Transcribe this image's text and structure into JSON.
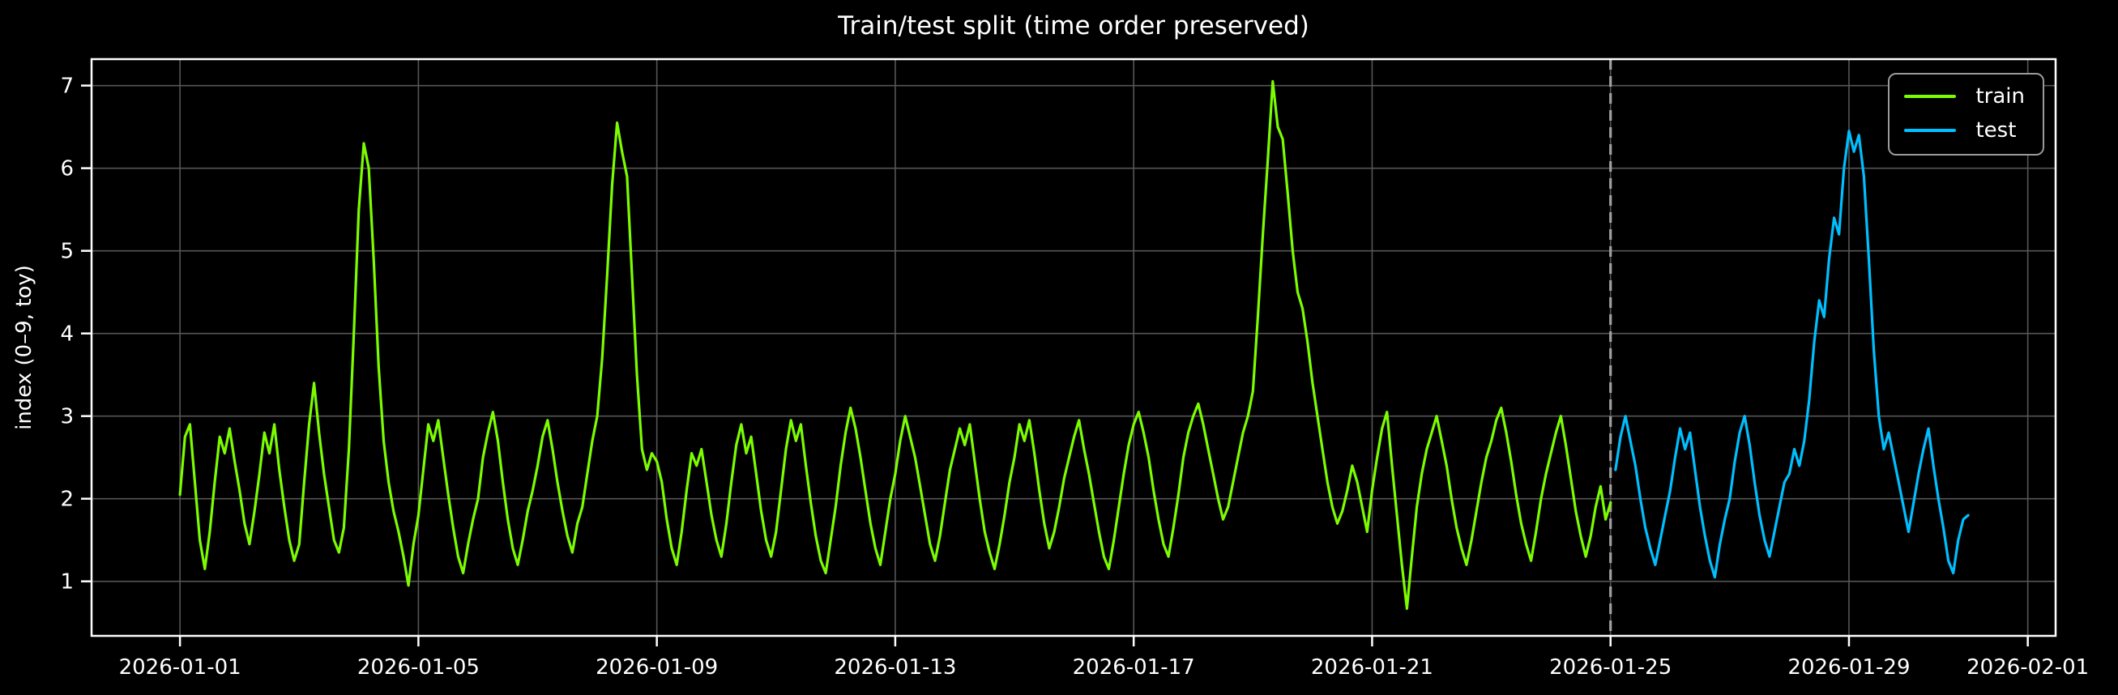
{
  "chart_data": {
    "type": "line",
    "title": "Train/test split (time order preserved)",
    "xlabel": "",
    "ylabel": "index (0–9, toy)",
    "background_color": "#000000",
    "grid": true,
    "grid_color": "#565656",
    "spine_color": "#ffffff",
    "text_color": "#ffffff",
    "x_axis": {
      "tick_labels": [
        "2026-01-01",
        "2026-01-05",
        "2026-01-09",
        "2026-01-13",
        "2026-01-17",
        "2026-01-21",
        "2026-01-25",
        "2026-01-29",
        "2026-02-01"
      ],
      "tick_hours": [
        0,
        96,
        192,
        288,
        384,
        480,
        576,
        672,
        744
      ],
      "xlim_hours": [
        -35.6,
        755.2
      ],
      "start_date": "2026-01-01"
    },
    "y_axis": {
      "ticks": [
        1,
        2,
        3,
        4,
        5,
        6,
        7
      ],
      "ylim": [
        0.34,
        7.32
      ]
    },
    "split_line": {
      "hour": 576,
      "date": "2026-01-25",
      "color": "#a0a0a0",
      "style": "dashed"
    },
    "step_hours": 2,
    "series": [
      {
        "name": "train",
        "color": "#7cfc00",
        "start_hour": 0,
        "values": [
          2.05,
          2.75,
          2.9,
          2.2,
          1.5,
          1.15,
          1.6,
          2.2,
          2.75,
          2.55,
          2.85,
          2.45,
          2.1,
          1.7,
          1.45,
          1.85,
          2.3,
          2.8,
          2.55,
          2.9,
          2.35,
          1.9,
          1.5,
          1.25,
          1.45,
          2.2,
          2.9,
          3.4,
          2.8,
          2.3,
          1.9,
          1.5,
          1.35,
          1.65,
          2.6,
          4.0,
          5.5,
          6.3,
          6.0,
          4.9,
          3.6,
          2.7,
          2.2,
          1.85,
          1.6,
          1.3,
          0.95,
          1.45,
          1.8,
          2.35,
          2.9,
          2.7,
          2.95,
          2.5,
          2.05,
          1.65,
          1.3,
          1.1,
          1.45,
          1.75,
          2.0,
          2.5,
          2.8,
          3.05,
          2.7,
          2.2,
          1.75,
          1.4,
          1.2,
          1.5,
          1.85,
          2.1,
          2.4,
          2.75,
          2.95,
          2.6,
          2.2,
          1.85,
          1.55,
          1.35,
          1.7,
          1.9,
          2.3,
          2.7,
          3.0,
          3.7,
          4.7,
          5.8,
          6.55,
          6.2,
          5.9,
          4.7,
          3.5,
          2.6,
          2.35,
          2.55,
          2.45,
          2.2,
          1.75,
          1.4,
          1.2,
          1.6,
          2.1,
          2.55,
          2.4,
          2.6,
          2.2,
          1.8,
          1.5,
          1.3,
          1.7,
          2.2,
          2.65,
          2.9,
          2.55,
          2.75,
          2.3,
          1.85,
          1.5,
          1.3,
          1.6,
          2.1,
          2.6,
          2.95,
          2.7,
          2.9,
          2.4,
          1.95,
          1.55,
          1.25,
          1.1,
          1.5,
          1.9,
          2.4,
          2.8,
          3.1,
          2.85,
          2.5,
          2.1,
          1.7,
          1.4,
          1.2,
          1.6,
          2.0,
          2.3,
          2.7,
          3.0,
          2.75,
          2.5,
          2.15,
          1.8,
          1.45,
          1.25,
          1.55,
          1.95,
          2.35,
          2.6,
          2.85,
          2.65,
          2.9,
          2.45,
          2.0,
          1.6,
          1.35,
          1.15,
          1.45,
          1.8,
          2.2,
          2.5,
          2.9,
          2.7,
          2.95,
          2.55,
          2.1,
          1.7,
          1.4,
          1.6,
          1.9,
          2.25,
          2.5,
          2.75,
          2.95,
          2.6,
          2.3,
          1.95,
          1.6,
          1.3,
          1.15,
          1.5,
          1.9,
          2.3,
          2.65,
          2.9,
          3.05,
          2.8,
          2.5,
          2.1,
          1.75,
          1.45,
          1.3,
          1.65,
          2.05,
          2.5,
          2.8,
          3.0,
          3.15,
          2.9,
          2.6,
          2.3,
          2.0,
          1.75,
          1.9,
          2.2,
          2.5,
          2.8,
          3.0,
          3.3,
          4.2,
          5.2,
          6.1,
          7.05,
          6.5,
          6.35,
          5.7,
          5.0,
          4.5,
          4.3,
          3.9,
          3.4,
          3.0,
          2.6,
          2.2,
          1.9,
          1.7,
          1.85,
          2.1,
          2.4,
          2.2,
          1.9,
          1.6,
          2.1,
          2.5,
          2.85,
          3.05,
          2.4,
          1.8,
          1.2,
          0.67,
          1.3,
          1.9,
          2.3,
          2.6,
          2.8,
          3.0,
          2.7,
          2.4,
          2.0,
          1.65,
          1.4,
          1.2,
          1.5,
          1.85,
          2.2,
          2.5,
          2.7,
          2.95,
          3.1,
          2.8,
          2.45,
          2.05,
          1.7,
          1.45,
          1.25,
          1.6,
          2.0,
          2.3,
          2.55,
          2.8,
          3.0,
          2.65,
          2.25,
          1.85,
          1.55,
          1.3,
          1.55,
          1.9,
          2.15,
          1.75,
          1.95
        ]
      },
      {
        "name": "test",
        "color": "#00bfff",
        "start_hour": 578,
        "values": [
          2.35,
          2.75,
          3.0,
          2.7,
          2.4,
          2.0,
          1.65,
          1.4,
          1.2,
          1.5,
          1.8,
          2.1,
          2.5,
          2.85,
          2.6,
          2.8,
          2.35,
          1.9,
          1.55,
          1.25,
          1.05,
          1.45,
          1.75,
          2.0,
          2.45,
          2.8,
          3.0,
          2.65,
          2.2,
          1.8,
          1.5,
          1.3,
          1.6,
          1.9,
          2.2,
          2.3,
          2.6,
          2.4,
          2.7,
          3.2,
          3.9,
          4.4,
          4.2,
          4.9,
          5.4,
          5.2,
          6.0,
          6.45,
          6.2,
          6.4,
          5.9,
          4.9,
          3.8,
          3.0,
          2.6,
          2.8,
          2.5,
          2.2,
          1.9,
          1.6,
          1.95,
          2.3,
          2.6,
          2.85,
          2.4,
          2.0,
          1.65,
          1.25,
          1.1,
          1.5,
          1.75,
          1.8
        ]
      }
    ],
    "legend": {
      "position": "upper right",
      "entries": [
        "train",
        "test"
      ]
    }
  }
}
